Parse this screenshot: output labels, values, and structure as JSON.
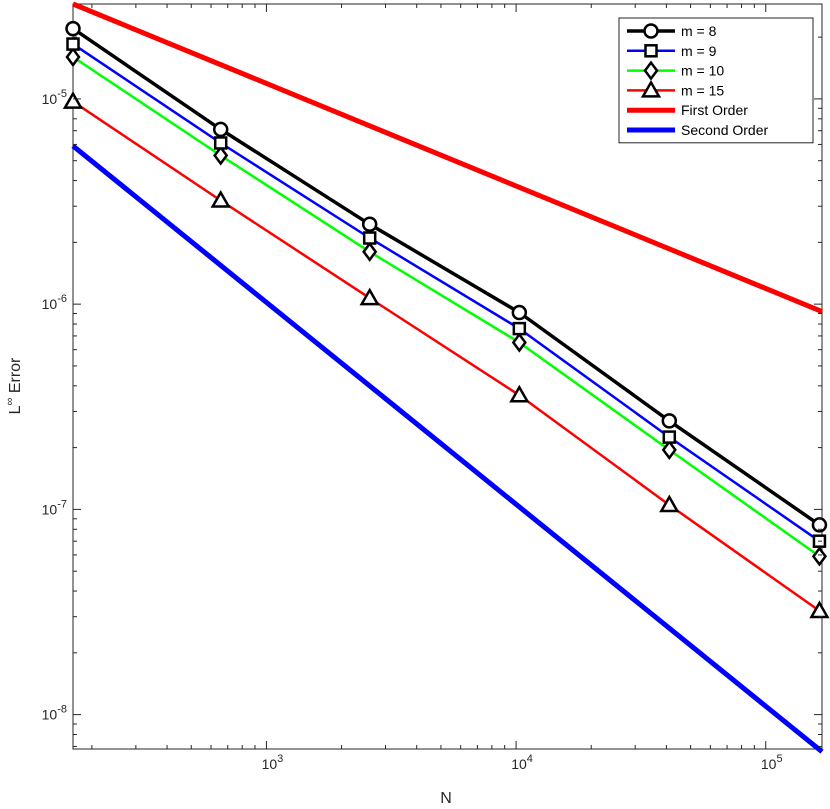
{
  "chart_data": {
    "type": "line",
    "xscale": "log",
    "yscale": "log",
    "xlabel": "N",
    "ylabel": {
      "base": "L",
      "sup": "∞",
      "rest": " Error"
    },
    "xlim": [
      168,
      168000
    ],
    "ylim": [
      6.8e-09,
      2.9e-05
    ],
    "x_ticks": [
      {
        "value": 1000,
        "base": "10",
        "exp": "3"
      },
      {
        "value": 10000,
        "base": "10",
        "exp": "4"
      },
      {
        "value": 100000,
        "base": "10",
        "exp": "5"
      }
    ],
    "y_ticks": [
      {
        "value": 1e-08,
        "base": "10",
        "exp": "-8"
      },
      {
        "value": 1e-07,
        "base": "10",
        "exp": "-7"
      },
      {
        "value": 1e-06,
        "base": "10",
        "exp": "-6"
      },
      {
        "value": 1e-05,
        "base": "10",
        "exp": "-5"
      }
    ],
    "grid": false,
    "legend_position": "top-right",
    "series": [
      {
        "name": "m = 8",
        "color": "#000000",
        "marker": "circle",
        "x": [
          168,
          656,
          2592,
          10304,
          41088,
          164096
        ],
        "y": [
          2.2e-05,
          7.1e-06,
          2.45e-06,
          9.1e-07,
          2.7e-07,
          8.4e-08
        ]
      },
      {
        "name": "m = 9",
        "color": "#0000ff",
        "marker": "square",
        "x": [
          168,
          656,
          2592,
          10304,
          41088,
          164096
        ],
        "y": [
          1.85e-05,
          6.1e-06,
          2.1e-06,
          7.6e-07,
          2.25e-07,
          7e-08
        ]
      },
      {
        "name": "m = 10",
        "color": "#00ff00",
        "marker": "diamond",
        "x": [
          168,
          656,
          2592,
          10304,
          41088,
          164096
        ],
        "y": [
          1.6e-05,
          5.3e-06,
          1.8e-06,
          6.5e-07,
          1.95e-07,
          5.9e-08
        ]
      },
      {
        "name": "m = 15",
        "color": "#ff0000",
        "marker": "triangle",
        "x": [
          168,
          656,
          2592,
          10304,
          41088,
          164096
        ],
        "y": [
          9.7e-06,
          3.2e-06,
          1.07e-06,
          3.6e-07,
          1.05e-07,
          3.2e-08
        ]
      },
      {
        "name": "First Order",
        "color": "#ff0000",
        "marker": "none",
        "width": "thick",
        "x": [
          168,
          168000
        ],
        "y": [
          2.9e-05,
          9.2e-07
        ]
      },
      {
        "name": "Second Order",
        "color": "#0000ff",
        "marker": "none",
        "width": "thick",
        "x": [
          168,
          168000
        ],
        "y": [
          5.9e-06,
          6.6e-09
        ]
      }
    ]
  }
}
